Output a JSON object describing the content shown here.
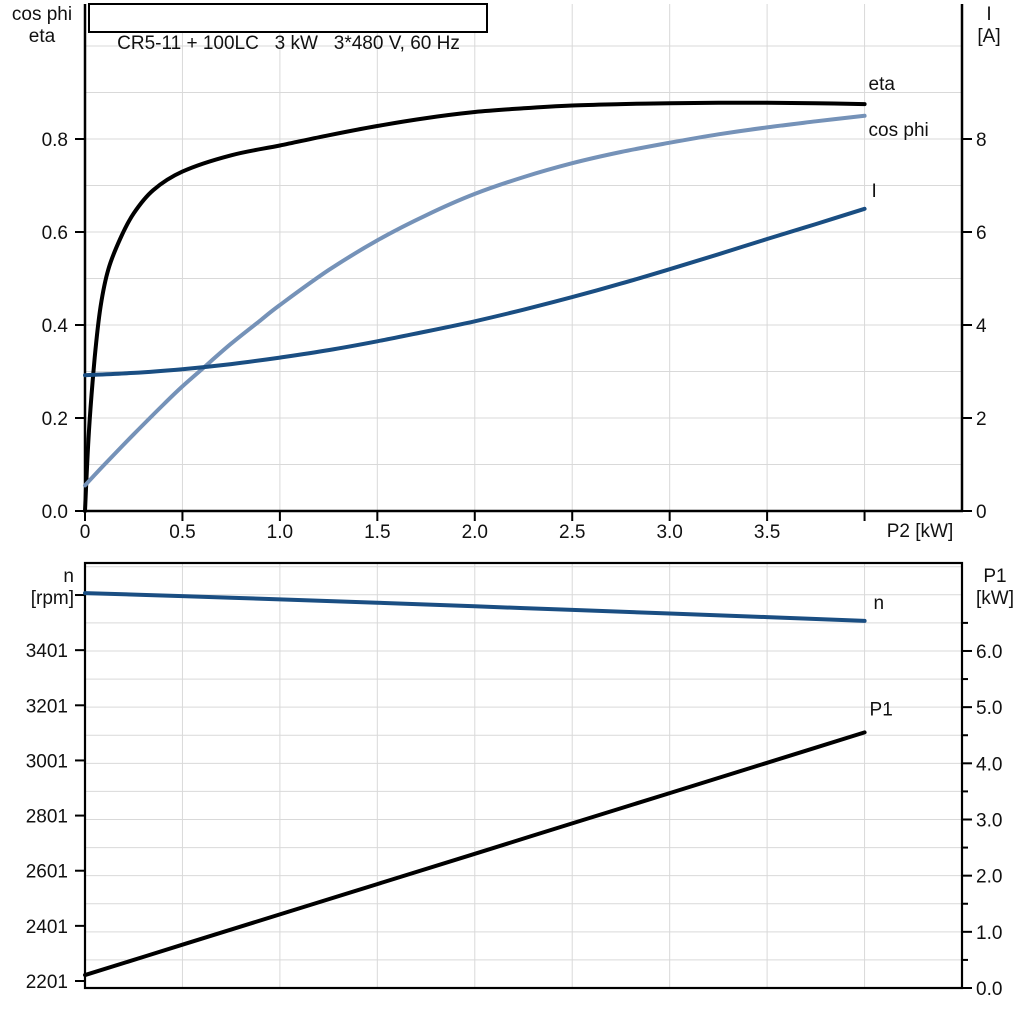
{
  "colors": {
    "eta_curve": "#000000",
    "cos_phi_curve": "#7592b8",
    "current_curve": "#1a4e82",
    "speed_curve": "#1a4e82",
    "p1_curve": "#000000",
    "grid": "#d9d9d9",
    "axis": "#000000",
    "text": "#111111"
  },
  "chart_data": [
    {
      "type": "line",
      "title": "CR5-11 + 100LC   3 kW   3*480 V, 60 Hz",
      "xlabel": "P2 [kW]",
      "xlim": [
        0,
        4.5
      ],
      "x_grid_step": 0.5,
      "x_ticks": [
        {
          "v": 0,
          "label": "0"
        },
        {
          "v": 0.5,
          "label": "0.5"
        },
        {
          "v": 1.0,
          "label": "1.0"
        },
        {
          "v": 1.5,
          "label": "1.5"
        },
        {
          "v": 2.0,
          "label": "2.0"
        },
        {
          "v": 2.5,
          "label": "2.5"
        },
        {
          "v": 3.0,
          "label": "3.0"
        },
        {
          "v": 3.5,
          "label": "3.5"
        },
        {
          "v": 4.0,
          "label": ""
        }
      ],
      "left_axis": {
        "title_lines": [
          "cos phi",
          "eta"
        ],
        "lim": [
          0,
          1.0
        ],
        "grid_step": 0.1,
        "ticks": [
          {
            "v": 0.0,
            "label": "0.0"
          },
          {
            "v": 0.2,
            "label": "0.2"
          },
          {
            "v": 0.4,
            "label": "0.4"
          },
          {
            "v": 0.6,
            "label": "0.6"
          },
          {
            "v": 0.8,
            "label": "0.8"
          }
        ]
      },
      "right_axis": {
        "title_lines": [
          "I",
          "[A]"
        ],
        "lim": [
          0,
          10
        ],
        "ticks": [
          {
            "v": 0,
            "label": "0"
          },
          {
            "v": 2,
            "label": "2"
          },
          {
            "v": 4,
            "label": "4"
          },
          {
            "v": 6,
            "label": "6"
          },
          {
            "v": 8,
            "label": "8"
          }
        ]
      },
      "series": [
        {
          "name": "eta",
          "label": "eta",
          "axis": "left",
          "color_key": "eta_curve",
          "x": [
            0,
            0.02,
            0.05,
            0.08,
            0.12,
            0.18,
            0.25,
            0.35,
            0.5,
            0.75,
            1.0,
            1.25,
            1.5,
            1.75,
            2.0,
            2.25,
            2.5,
            2.75,
            3.0,
            3.25,
            3.5,
            3.75,
            4.0
          ],
          "y": [
            0,
            0.17,
            0.33,
            0.44,
            0.52,
            0.585,
            0.64,
            0.69,
            0.73,
            0.765,
            0.786,
            0.808,
            0.828,
            0.845,
            0.858,
            0.866,
            0.872,
            0.875,
            0.877,
            0.878,
            0.878,
            0.877,
            0.875
          ]
        },
        {
          "name": "cos phi",
          "label": "cos phi",
          "axis": "left",
          "color_key": "cos_phi_curve",
          "x": [
            0,
            0.1,
            0.25,
            0.4,
            0.5,
            0.6,
            0.75,
            0.9,
            1.0,
            1.25,
            1.5,
            1.75,
            2.0,
            2.25,
            2.5,
            2.75,
            3.0,
            3.25,
            3.5,
            3.75,
            4.0
          ],
          "y": [
            0.055,
            0.1,
            0.165,
            0.228,
            0.268,
            0.305,
            0.36,
            0.41,
            0.443,
            0.518,
            0.582,
            0.636,
            0.682,
            0.718,
            0.748,
            0.772,
            0.792,
            0.81,
            0.825,
            0.838,
            0.85
          ]
        },
        {
          "name": "I",
          "label": "I",
          "axis": "right",
          "color_key": "current_curve",
          "x": [
            0,
            0.25,
            0.5,
            0.75,
            1.0,
            1.25,
            1.5,
            1.75,
            2.0,
            2.25,
            2.5,
            2.75,
            3.0,
            3.25,
            3.5,
            3.75,
            4.0
          ],
          "y": [
            2.92,
            2.97,
            3.05,
            3.16,
            3.3,
            3.46,
            3.65,
            3.86,
            4.08,
            4.33,
            4.6,
            4.89,
            5.2,
            5.52,
            5.85,
            6.17,
            6.5
          ]
        }
      ]
    },
    {
      "type": "line",
      "title": "",
      "xlabel": "",
      "xlim": [
        0,
        4.5
      ],
      "x_grid_step": 0.5,
      "x_ticks": [],
      "left_axis": {
        "title_lines": [
          "n",
          "[rpm]"
        ],
        "lim": [
          2172,
          3717
        ],
        "ticks": [
          {
            "v": 2201,
            "label": "2201"
          },
          {
            "v": 2401,
            "label": "2401"
          },
          {
            "v": 2601,
            "label": "2601"
          },
          {
            "v": 2801,
            "label": "2801"
          },
          {
            "v": 3001,
            "label": "3001"
          },
          {
            "v": 3201,
            "label": "3201"
          },
          {
            "v": 3401,
            "label": "3401"
          },
          {
            "v": 3601,
            "label": ""
          }
        ]
      },
      "right_axis": {
        "title_lines": [
          "P1",
          "[kW]"
        ],
        "lim": [
          0,
          7.5
        ],
        "minor_step": 0.5,
        "ticks": [
          {
            "v": 0,
            "label": "0.0"
          },
          {
            "v": 1,
            "label": "1.0"
          },
          {
            "v": 2,
            "label": "2.0"
          },
          {
            "v": 3,
            "label": "3.0"
          },
          {
            "v": 4,
            "label": "4.0"
          },
          {
            "v": 5,
            "label": "5.0"
          },
          {
            "v": 6,
            "label": "6.0"
          }
        ]
      },
      "series": [
        {
          "name": "n",
          "label": "n",
          "axis": "left",
          "color_key": "speed_curve",
          "x": [
            0,
            0.5,
            1.0,
            1.5,
            2.0,
            2.5,
            3.0,
            3.5,
            4.0
          ],
          "y": [
            3608,
            3597,
            3585,
            3573,
            3560,
            3547,
            3534,
            3521,
            3507
          ]
        },
        {
          "name": "P1",
          "label": "P1",
          "axis": "right",
          "color_key": "p1_curve",
          "x": [
            0,
            0.5,
            1.0,
            1.5,
            2.0,
            2.5,
            3.0,
            3.5,
            4.0
          ],
          "y": [
            0.23,
            0.77,
            1.31,
            1.85,
            2.39,
            2.93,
            3.47,
            4.01,
            4.55
          ]
        }
      ]
    }
  ]
}
